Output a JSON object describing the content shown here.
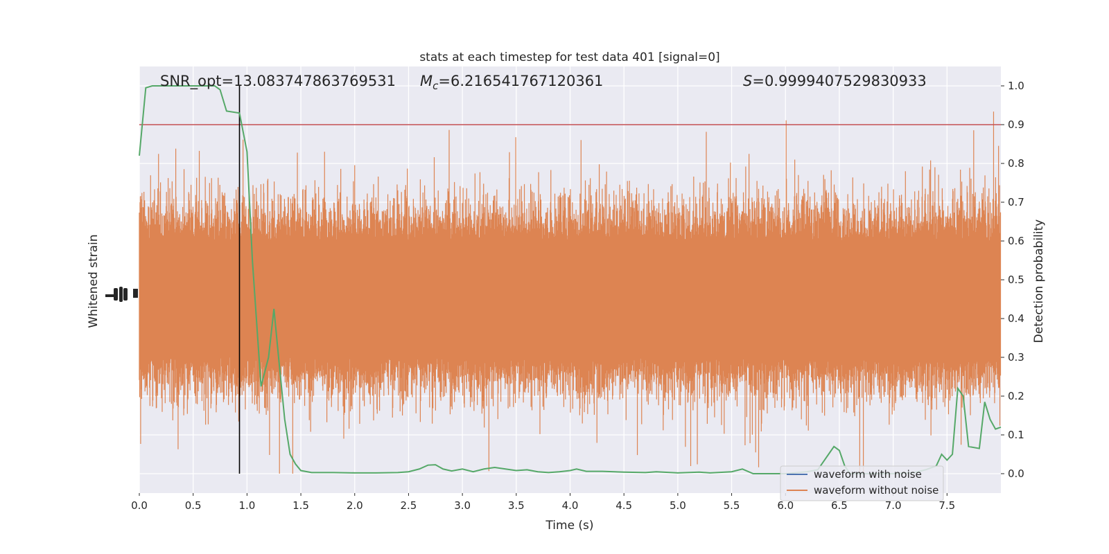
{
  "chart_data": {
    "type": "line",
    "title": "stats at each timestep for test data 401 [signal=0]",
    "xlabel": "Time (s)",
    "ylabel_left": "Whitened strain",
    "ylabel_right": "Detection probability",
    "xlim": [
      0,
      8
    ],
    "ylim_right": [
      -0.05,
      1.05
    ],
    "x_ticks": [
      "0.0",
      "0.5",
      "1.0",
      "1.5",
      "2.0",
      "2.5",
      "3.0",
      "3.5",
      "4.0",
      "4.5",
      "5.0",
      "5.5",
      "6.0",
      "6.5",
      "7.0",
      "7.5"
    ],
    "y_ticks_right": [
      "0.0",
      "0.1",
      "0.2",
      "0.3",
      "0.4",
      "0.5",
      "0.6",
      "0.7",
      "0.8",
      "0.9",
      "1.0"
    ],
    "annotations": {
      "snr_opt": "SNR_opt=13.083747863769531",
      "mc_symbol": "M",
      "mc_sub": "c",
      "mc_value": "=6.216541767120361",
      "s_symbol": "S",
      "s_value": "=0.9999407529830933"
    },
    "threshold": 0.9,
    "marker_time": 0.93,
    "legend": {
      "placement": "lower-right",
      "entries": [
        {
          "label": "waveform with noise",
          "color": "#4c72b0"
        },
        {
          "label": "waveform without noise",
          "color": "#dd8452"
        }
      ]
    },
    "series": [
      {
        "name": "waveform without noise",
        "color": "#dd8452",
        "type": "noise-band",
        "central_range": [
          0.3,
          0.6
        ],
        "peak_range": [
          0.0,
          1.0
        ]
      },
      {
        "name": "detection probability",
        "color": "#55a868",
        "x": [
          0.0,
          0.06,
          0.12,
          0.2,
          0.3,
          0.5,
          0.7,
          0.75,
          0.81,
          0.93,
          1.0,
          1.05,
          1.13,
          1.2,
          1.25,
          1.3,
          1.35,
          1.4,
          1.45,
          1.5,
          1.6,
          1.8,
          2.0,
          2.2,
          2.4,
          2.5,
          2.6,
          2.68,
          2.75,
          2.82,
          2.9,
          3.0,
          3.1,
          3.2,
          3.3,
          3.4,
          3.5,
          3.6,
          3.7,
          3.8,
          3.9,
          4.0,
          4.06,
          4.15,
          4.3,
          4.5,
          4.7,
          4.8,
          5.0,
          5.2,
          5.3,
          5.5,
          5.6,
          5.7,
          6.0,
          6.2,
          6.3,
          6.4,
          6.45,
          6.5,
          6.55,
          6.6,
          6.65,
          6.7,
          7.0,
          7.2,
          7.3,
          7.4,
          7.45,
          7.5,
          7.55,
          7.6,
          7.65,
          7.7,
          7.8,
          7.85,
          7.9,
          7.95,
          8.0
        ],
        "values": [
          0.82,
          0.995,
          1.0,
          1.0,
          1.0,
          1.0,
          1.0,
          0.99,
          0.935,
          0.93,
          0.83,
          0.55,
          0.225,
          0.3,
          0.425,
          0.28,
          0.14,
          0.05,
          0.025,
          0.008,
          0.003,
          0.003,
          0.002,
          0.002,
          0.003,
          0.005,
          0.012,
          0.022,
          0.023,
          0.012,
          0.007,
          0.012,
          0.005,
          0.012,
          0.016,
          0.012,
          0.008,
          0.01,
          0.005,
          0.003,
          0.005,
          0.008,
          0.012,
          0.006,
          0.006,
          0.004,
          0.003,
          0.005,
          0.002,
          0.004,
          0.002,
          0.005,
          0.012,
          0.0,
          0.0,
          0.005,
          0.01,
          0.05,
          0.07,
          0.06,
          0.02,
          0.0,
          0.0,
          0.0,
          0.0,
          0.003,
          0.01,
          0.02,
          0.05,
          0.035,
          0.05,
          0.22,
          0.2,
          0.07,
          0.065,
          0.185,
          0.14,
          0.115,
          0.12
        ]
      }
    ]
  }
}
